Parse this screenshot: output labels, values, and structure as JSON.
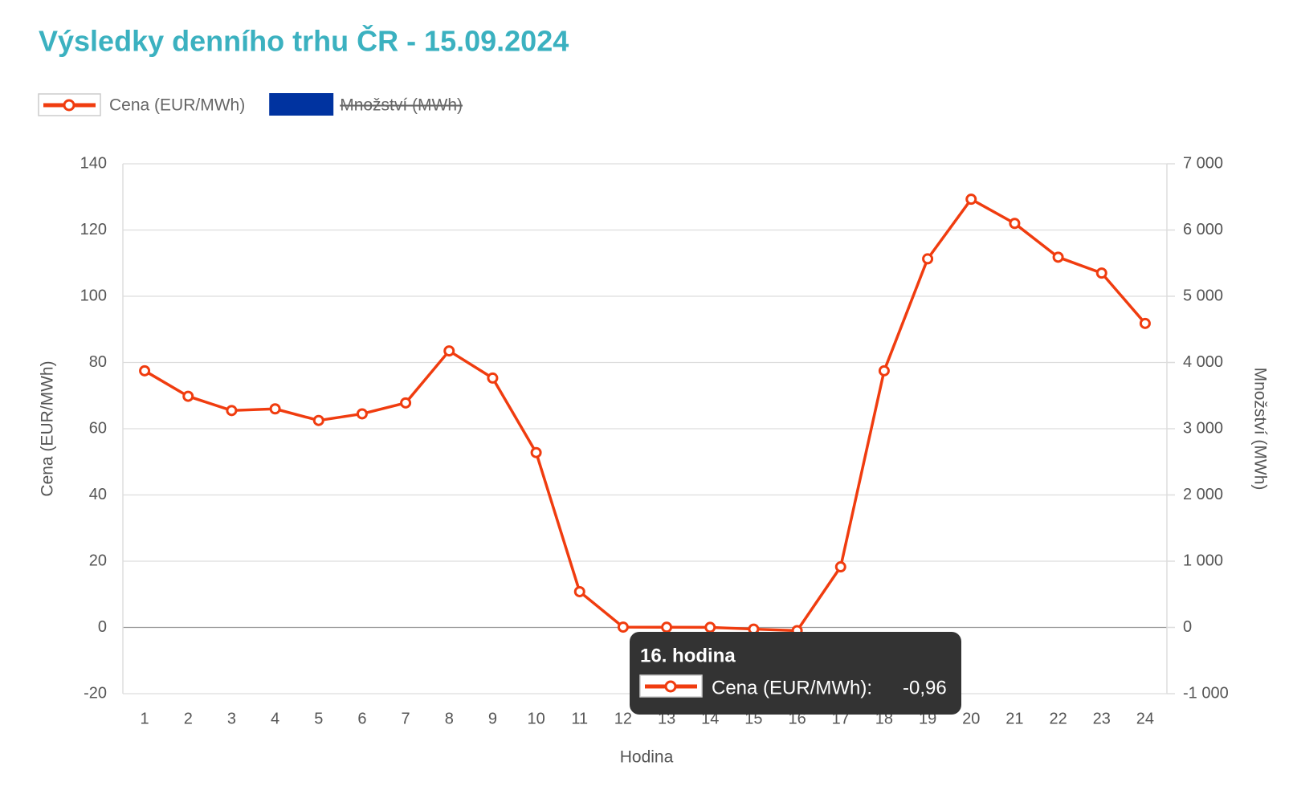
{
  "chart_data": {
    "type": "line",
    "title": "Výsledky denního trhu ČR - 15.09.2024",
    "x_label": "Hodina",
    "y_label": "Cena (EUR/MWh)",
    "y2_label": "Množství (MWh)",
    "categories": [
      "1",
      "2",
      "3",
      "4",
      "5",
      "6",
      "7",
      "8",
      "9",
      "10",
      "11",
      "12",
      "13",
      "14",
      "15",
      "16",
      "17",
      "18",
      "19",
      "20",
      "21",
      "22",
      "23",
      "24"
    ],
    "series": [
      {
        "name": "Cena (EUR/MWh)",
        "color": "#f03c0f",
        "values": [
          77.5,
          69.8,
          65.5,
          66,
          62.5,
          64.5,
          67.8,
          83.5,
          75.3,
          52.8,
          10.8,
          0.1,
          0.05,
          0.02,
          -0.5,
          -0.96,
          18.3,
          77.5,
          111.3,
          129.3,
          122,
          111.8,
          107,
          91.8
        ]
      },
      {
        "name": "Množství (MWh)",
        "color": "#0033a0",
        "axis": "y2",
        "hidden": true
      }
    ],
    "ylim": [
      -20,
      140
    ],
    "yticks": [
      -20,
      0,
      20,
      40,
      60,
      80,
      100,
      120,
      140
    ],
    "y2lim": [
      -1000,
      7000
    ],
    "y2ticks": [
      {
        "value": -1000,
        "label": "-1 000"
      },
      0,
      {
        "value": 1000,
        "label": "1 000"
      },
      {
        "value": 2000,
        "label": "2 000"
      },
      {
        "value": 3000,
        "label": "3 000"
      },
      {
        "value": 4000,
        "label": "4 000"
      },
      {
        "value": 5000,
        "label": "5 000"
      },
      {
        "value": 6000,
        "label": "6 000"
      },
      {
        "value": 7000,
        "label": "7 000"
      }
    ],
    "grid": true,
    "legend": "top",
    "tooltip": {
      "title": "16. hodina",
      "label": "Cena (EUR/MWh):",
      "text": "-0,96"
    }
  }
}
